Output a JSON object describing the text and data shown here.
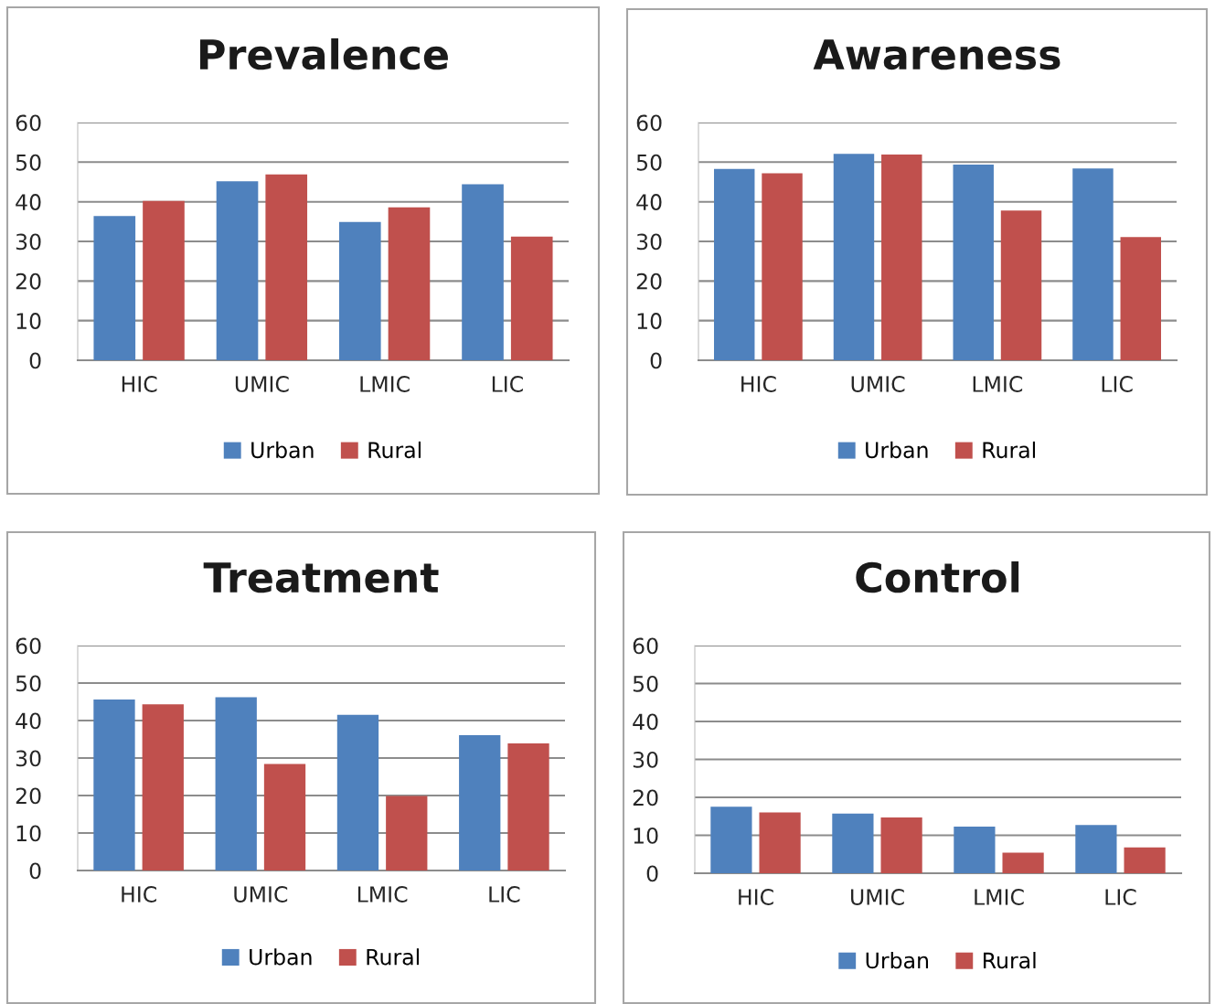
{
  "chart_data": [
    {
      "type": "bar",
      "title": "Prevalence",
      "categories": [
        "HIC",
        "UMIC",
        "LMIC",
        "LIC"
      ],
      "ylim": [
        0,
        60
      ],
      "yticks": [
        0,
        10,
        20,
        30,
        40,
        50,
        60
      ],
      "grid": "y",
      "legend": "bottom",
      "series": [
        {
          "name": "Urban",
          "color": "#4f81bd",
          "values": [
            36.4,
            45.2,
            34.9,
            44.4
          ]
        },
        {
          "name": "Rural",
          "color": "#c0504d",
          "values": [
            40.2,
            46.9,
            38.6,
            31.2
          ]
        }
      ]
    },
    {
      "type": "bar",
      "title": "Awareness",
      "categories": [
        "HIC",
        "UMIC",
        "LMIC",
        "LIC"
      ],
      "ylim": [
        0,
        60
      ],
      "yticks": [
        0,
        10,
        20,
        30,
        40,
        50,
        60
      ],
      "grid": "y",
      "legend": "bottom",
      "series": [
        {
          "name": "Urban",
          "color": "#4f81bd",
          "values": [
            48.3,
            52.1,
            49.4,
            48.4
          ]
        },
        {
          "name": "Rural",
          "color": "#c0504d",
          "values": [
            47.2,
            51.9,
            37.8,
            31.1
          ]
        }
      ]
    },
    {
      "type": "bar",
      "title": "Treatment",
      "categories": [
        "HIC",
        "UMIC",
        "LMIC",
        "LIC"
      ],
      "ylim": [
        0,
        60
      ],
      "yticks": [
        0,
        10,
        20,
        30,
        40,
        50,
        60
      ],
      "grid": "y",
      "legend": "bottom",
      "series": [
        {
          "name": "Urban",
          "color": "#4f81bd",
          "values": [
            45.6,
            46.2,
            41.5,
            36.1
          ]
        },
        {
          "name": "Rural",
          "color": "#c0504d",
          "values": [
            44.3,
            28.4,
            19.9,
            33.9
          ]
        }
      ]
    },
    {
      "type": "bar",
      "title": "Control",
      "categories": [
        "HIC",
        "UMIC",
        "LMIC",
        "LIC"
      ],
      "ylim": [
        0,
        60
      ],
      "yticks": [
        0,
        10,
        20,
        30,
        40,
        50,
        60
      ],
      "grid": "y",
      "legend": "bottom",
      "series": [
        {
          "name": "Urban",
          "color": "#4f81bd",
          "values": [
            17.5,
            15.7,
            12.3,
            12.7
          ]
        },
        {
          "name": "Rural",
          "color": "#c0504d",
          "values": [
            16.0,
            14.7,
            5.4,
            6.8
          ]
        }
      ]
    }
  ]
}
